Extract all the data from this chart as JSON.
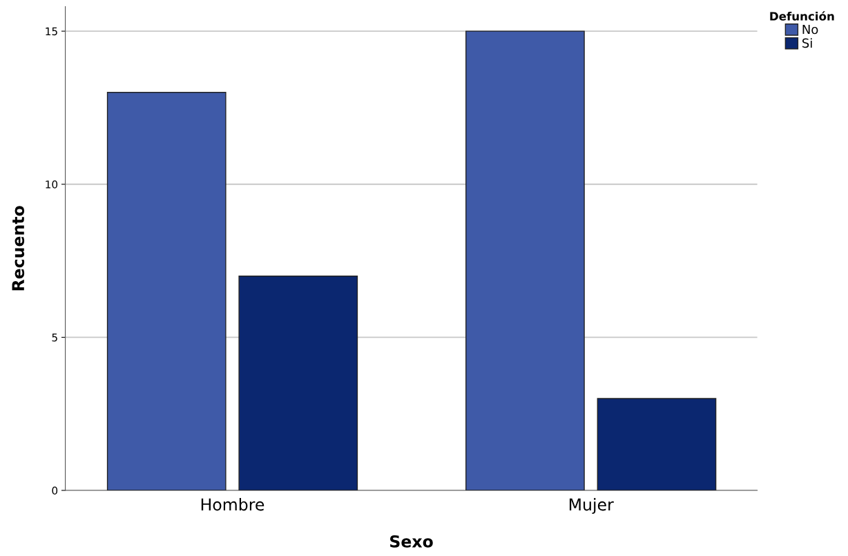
{
  "chart_data": {
    "type": "bar",
    "xlabel": "Sexo",
    "ylabel": "Recuento",
    "legend_title": "Defunción",
    "categories": [
      "Hombre",
      "Mujer"
    ],
    "series": [
      {
        "name": "No",
        "color": "#3f5aa8",
        "values": [
          13,
          15
        ]
      },
      {
        "name": "Si",
        "color": "#0b2770",
        "values": [
          7,
          3
        ]
      }
    ],
    "ylim": [
      0,
      15.8
    ],
    "yticks": [
      0,
      5,
      10,
      15
    ],
    "grid": "y",
    "legend": "top right"
  }
}
